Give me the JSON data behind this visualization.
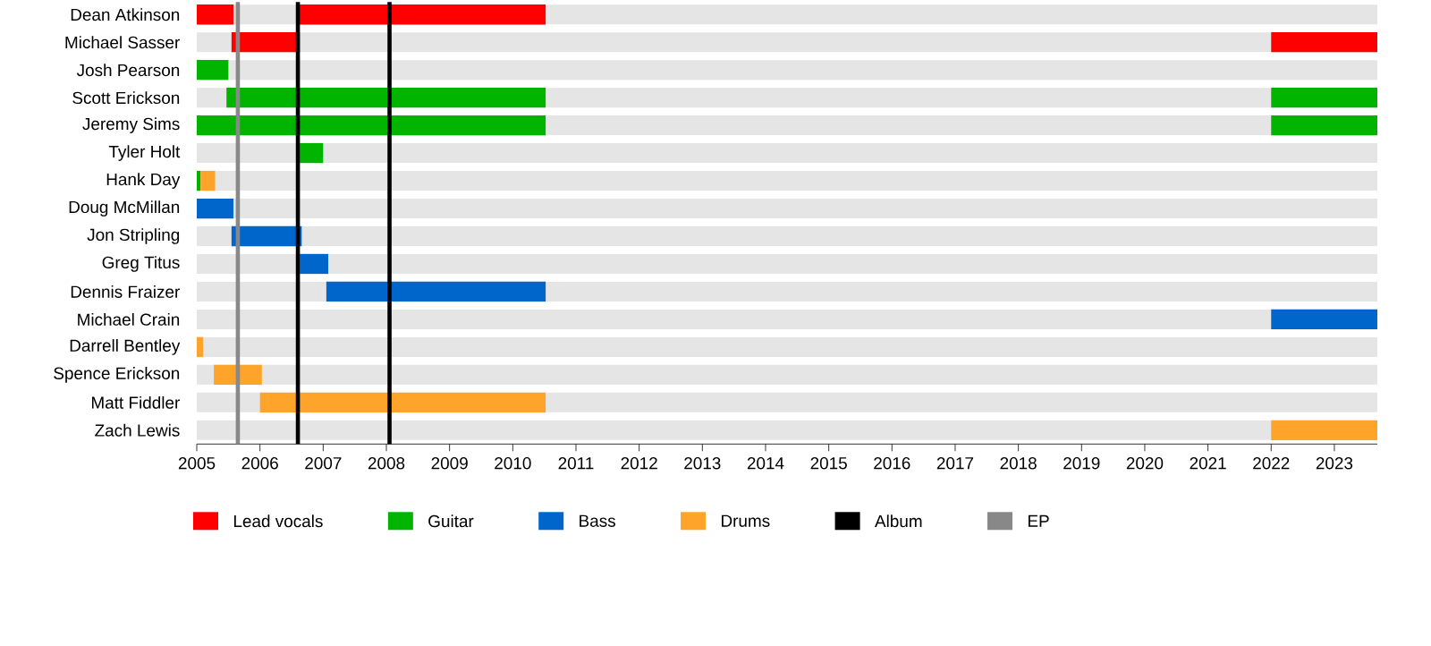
{
  "chart_data": {
    "type": "bar",
    "orientation": "horizontal",
    "grid": "y",
    "legend": "bottom",
    "categories": [
      "Dean Atkinson",
      "Michael Sasser",
      "Josh Pearson",
      "Scott Erickson",
      "Jeremy Sims",
      "Tyler Holt",
      "Hank Day",
      "Doug McMillan",
      "Jon Stripling",
      "Greg Titus",
      "Dennis Fraizer",
      "Michael Crain",
      "Darrell Bentley",
      "Spence Erickson",
      "Matt Fiddler",
      "Zach Lewis"
    ],
    "series": [
      {
        "name": "Lead vocals",
        "color": "#ff0000",
        "base": [
          2005,
          2005.55,
          null,
          null,
          null,
          null,
          null,
          null,
          null,
          null,
          null,
          null,
          null,
          null,
          null,
          null
        ],
        "values": [
          0.58,
          1.08,
          null,
          null,
          null,
          null,
          null,
          null,
          null,
          null,
          null,
          null,
          null,
          null,
          null,
          null
        ]
      },
      {
        "color": "#ff0000",
        "base": [
          2006.6,
          2022,
          null,
          null,
          null,
          null,
          null,
          null,
          null,
          null,
          null,
          null,
          null,
          null,
          null,
          null
        ],
        "values": [
          3.92,
          1.68,
          null,
          null,
          null,
          null,
          null,
          null,
          null,
          null,
          null,
          null,
          null,
          null,
          null,
          null
        ]
      },
      {
        "name": "Guitar",
        "color": "#00b400",
        "base": [
          null,
          null,
          2005,
          2005.47,
          2005,
          2006.63,
          2005,
          null,
          null,
          null,
          null,
          null,
          null,
          null,
          null,
          null
        ],
        "values": [
          null,
          null,
          0.5,
          5.05,
          5.52,
          0.37,
          0.06,
          null,
          null,
          null,
          null,
          null,
          null,
          null,
          null,
          null
        ]
      },
      {
        "color": "#00b400",
        "base": [
          null,
          null,
          null,
          2022,
          2022,
          null,
          null,
          null,
          null,
          null,
          null,
          null,
          null,
          null,
          null,
          null
        ],
        "values": [
          null,
          null,
          null,
          1.68,
          1.68,
          null,
          null,
          null,
          null,
          null,
          null,
          null,
          null,
          null,
          null,
          null
        ]
      },
      {
        "name": "Bass",
        "color": "#0066cc",
        "base": [
          null,
          null,
          null,
          null,
          null,
          null,
          null,
          2005,
          2005.55,
          2006.63,
          2007.05,
          2022,
          null,
          null,
          null,
          null
        ],
        "values": [
          null,
          null,
          null,
          null,
          null,
          null,
          null,
          0.58,
          1.11,
          0.45,
          3.47,
          1.68,
          null,
          null,
          null,
          null
        ]
      },
      {
        "name": "Drums",
        "color": "#ffa42a",
        "base": [
          null,
          null,
          null,
          null,
          null,
          null,
          2005.06,
          null,
          null,
          null,
          null,
          null,
          2005,
          2005.27,
          2006,
          2022
        ],
        "values": [
          null,
          null,
          null,
          null,
          null,
          null,
          0.23,
          null,
          null,
          null,
          null,
          null,
          0.1,
          0.76,
          4.52,
          1.68
        ]
      }
    ],
    "ref_lines": [
      {
        "axis": "x",
        "value": 2006.6,
        "label": "Album",
        "color": "#000000"
      },
      {
        "axis": "x",
        "value": 2008.05,
        "color": "#000000"
      },
      {
        "axis": "x",
        "value": 2005.65,
        "label": "EP",
        "color": "#888888"
      }
    ],
    "xlim": [
      2005,
      2023.68
    ],
    "xticks": [
      2005,
      2006,
      2007,
      2008,
      2009,
      2010,
      2011,
      2012,
      2013,
      2014,
      2015,
      2016,
      2017,
      2018,
      2019,
      2020,
      2021,
      2022,
      2023
    ]
  }
}
